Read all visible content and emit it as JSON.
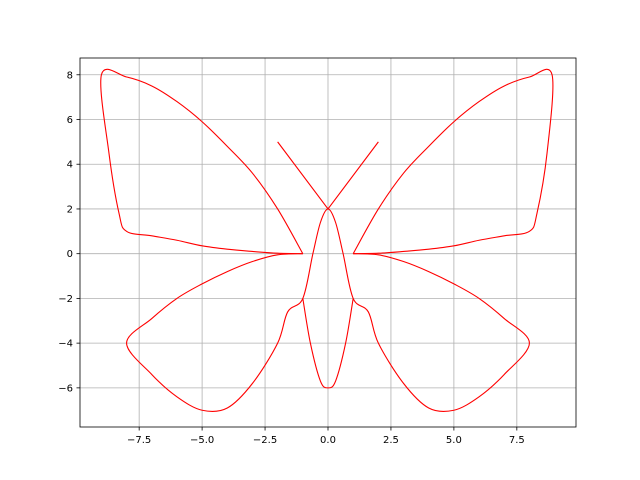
{
  "chart_data": {
    "type": "line",
    "title": "",
    "xlabel": "",
    "ylabel": "",
    "xlim": [
      -9.85,
      9.85
    ],
    "ylim": [
      -7.75,
      8.75
    ],
    "grid": true,
    "legend": "none",
    "xticks": [
      -7.5,
      -5.0,
      -2.5,
      0.0,
      2.5,
      5.0,
      7.5
    ],
    "xtick_labels": [
      "−7.5",
      "−5.0",
      "−2.5",
      "0.0",
      "2.5",
      "5.0",
      "7.5"
    ],
    "yticks": [
      -6,
      -4,
      -2,
      0,
      2,
      4,
      6,
      8
    ],
    "ytick_labels": [
      "−6",
      "−4",
      "−2",
      "0",
      "2",
      "4",
      "6",
      "8"
    ],
    "series": [
      {
        "color": "#ff0000",
        "segments": [
          [
            [
              -2,
              5
            ],
            [
              0,
              2
            ],
            [
              2,
              5
            ]
          ],
          [
            [
              -1,
              0
            ],
            [
              -2,
              2
            ],
            [
              -3,
              3.6
            ],
            [
              -4,
              4.8
            ],
            [
              -5,
              5.9
            ],
            [
              -6,
              6.8
            ],
            [
              -7,
              7.5
            ],
            [
              -8,
              7.9
            ],
            [
              -9,
              8
            ],
            [
              -8.7,
              4.5
            ],
            [
              -8.3,
              1.8
            ],
            [
              -8,
              1
            ],
            [
              -7,
              0.8
            ],
            [
              -6,
              0.6
            ],
            [
              -5,
              0.35
            ],
            [
              -4,
              0.2
            ],
            [
              -3,
              0.1
            ],
            [
              -2,
              0.02
            ],
            [
              -1,
              0
            ]
          ],
          [
            [
              1,
              0
            ],
            [
              2,
              2
            ],
            [
              3,
              3.6
            ],
            [
              4,
              4.8
            ],
            [
              5,
              5.9
            ],
            [
              6,
              6.8
            ],
            [
              7,
              7.5
            ],
            [
              8,
              7.9
            ],
            [
              8.9,
              8
            ],
            [
              8.7,
              4.5
            ],
            [
              8.3,
              1.8
            ],
            [
              8,
              1
            ],
            [
              7,
              0.8
            ],
            [
              6,
              0.6
            ],
            [
              5,
              0.35
            ],
            [
              4,
              0.2
            ],
            [
              3,
              0.1
            ],
            [
              2,
              0.02
            ],
            [
              1,
              0
            ]
          ],
          [
            [
              -1,
              0
            ],
            [
              -2,
              -0.05
            ],
            [
              -3,
              -0.35
            ],
            [
              -4,
              -0.8
            ],
            [
              -5,
              -1.35
            ],
            [
              -6,
              -2
            ],
            [
              -7,
              -2.9
            ],
            [
              -8,
              -4
            ],
            [
              -7,
              -5.4
            ],
            [
              -6,
              -6.4
            ],
            [
              -5,
              -7
            ],
            [
              -4,
              -6.9
            ],
            [
              -3,
              -5.8
            ],
            [
              -2,
              -4
            ],
            [
              -1.6,
              -2.6
            ],
            [
              -1,
              -2
            ],
            [
              -0.6,
              0
            ],
            [
              -0.3,
              1.4
            ],
            [
              0,
              2
            ],
            [
              0.3,
              1.4
            ],
            [
              0.6,
              0
            ],
            [
              1,
              -2
            ],
            [
              1.6,
              -2.6
            ],
            [
              2,
              -4
            ],
            [
              3,
              -5.8
            ],
            [
              4,
              -6.9
            ],
            [
              5,
              -7
            ],
            [
              6,
              -6.4
            ],
            [
              7,
              -5.4
            ],
            [
              8,
              -4
            ],
            [
              7,
              -2.9
            ],
            [
              6,
              -2
            ],
            [
              5,
              -1.35
            ],
            [
              4,
              -0.8
            ],
            [
              3,
              -0.35
            ],
            [
              2,
              -0.05
            ],
            [
              1,
              0
            ]
          ],
          [
            [
              -1,
              -2
            ],
            [
              -0.7,
              -4
            ],
            [
              -0.3,
              -5.7
            ],
            [
              0,
              -6
            ],
            [
              0.3,
              -5.7
            ],
            [
              0.7,
              -4
            ],
            [
              1,
              -2
            ]
          ]
        ]
      }
    ]
  }
}
